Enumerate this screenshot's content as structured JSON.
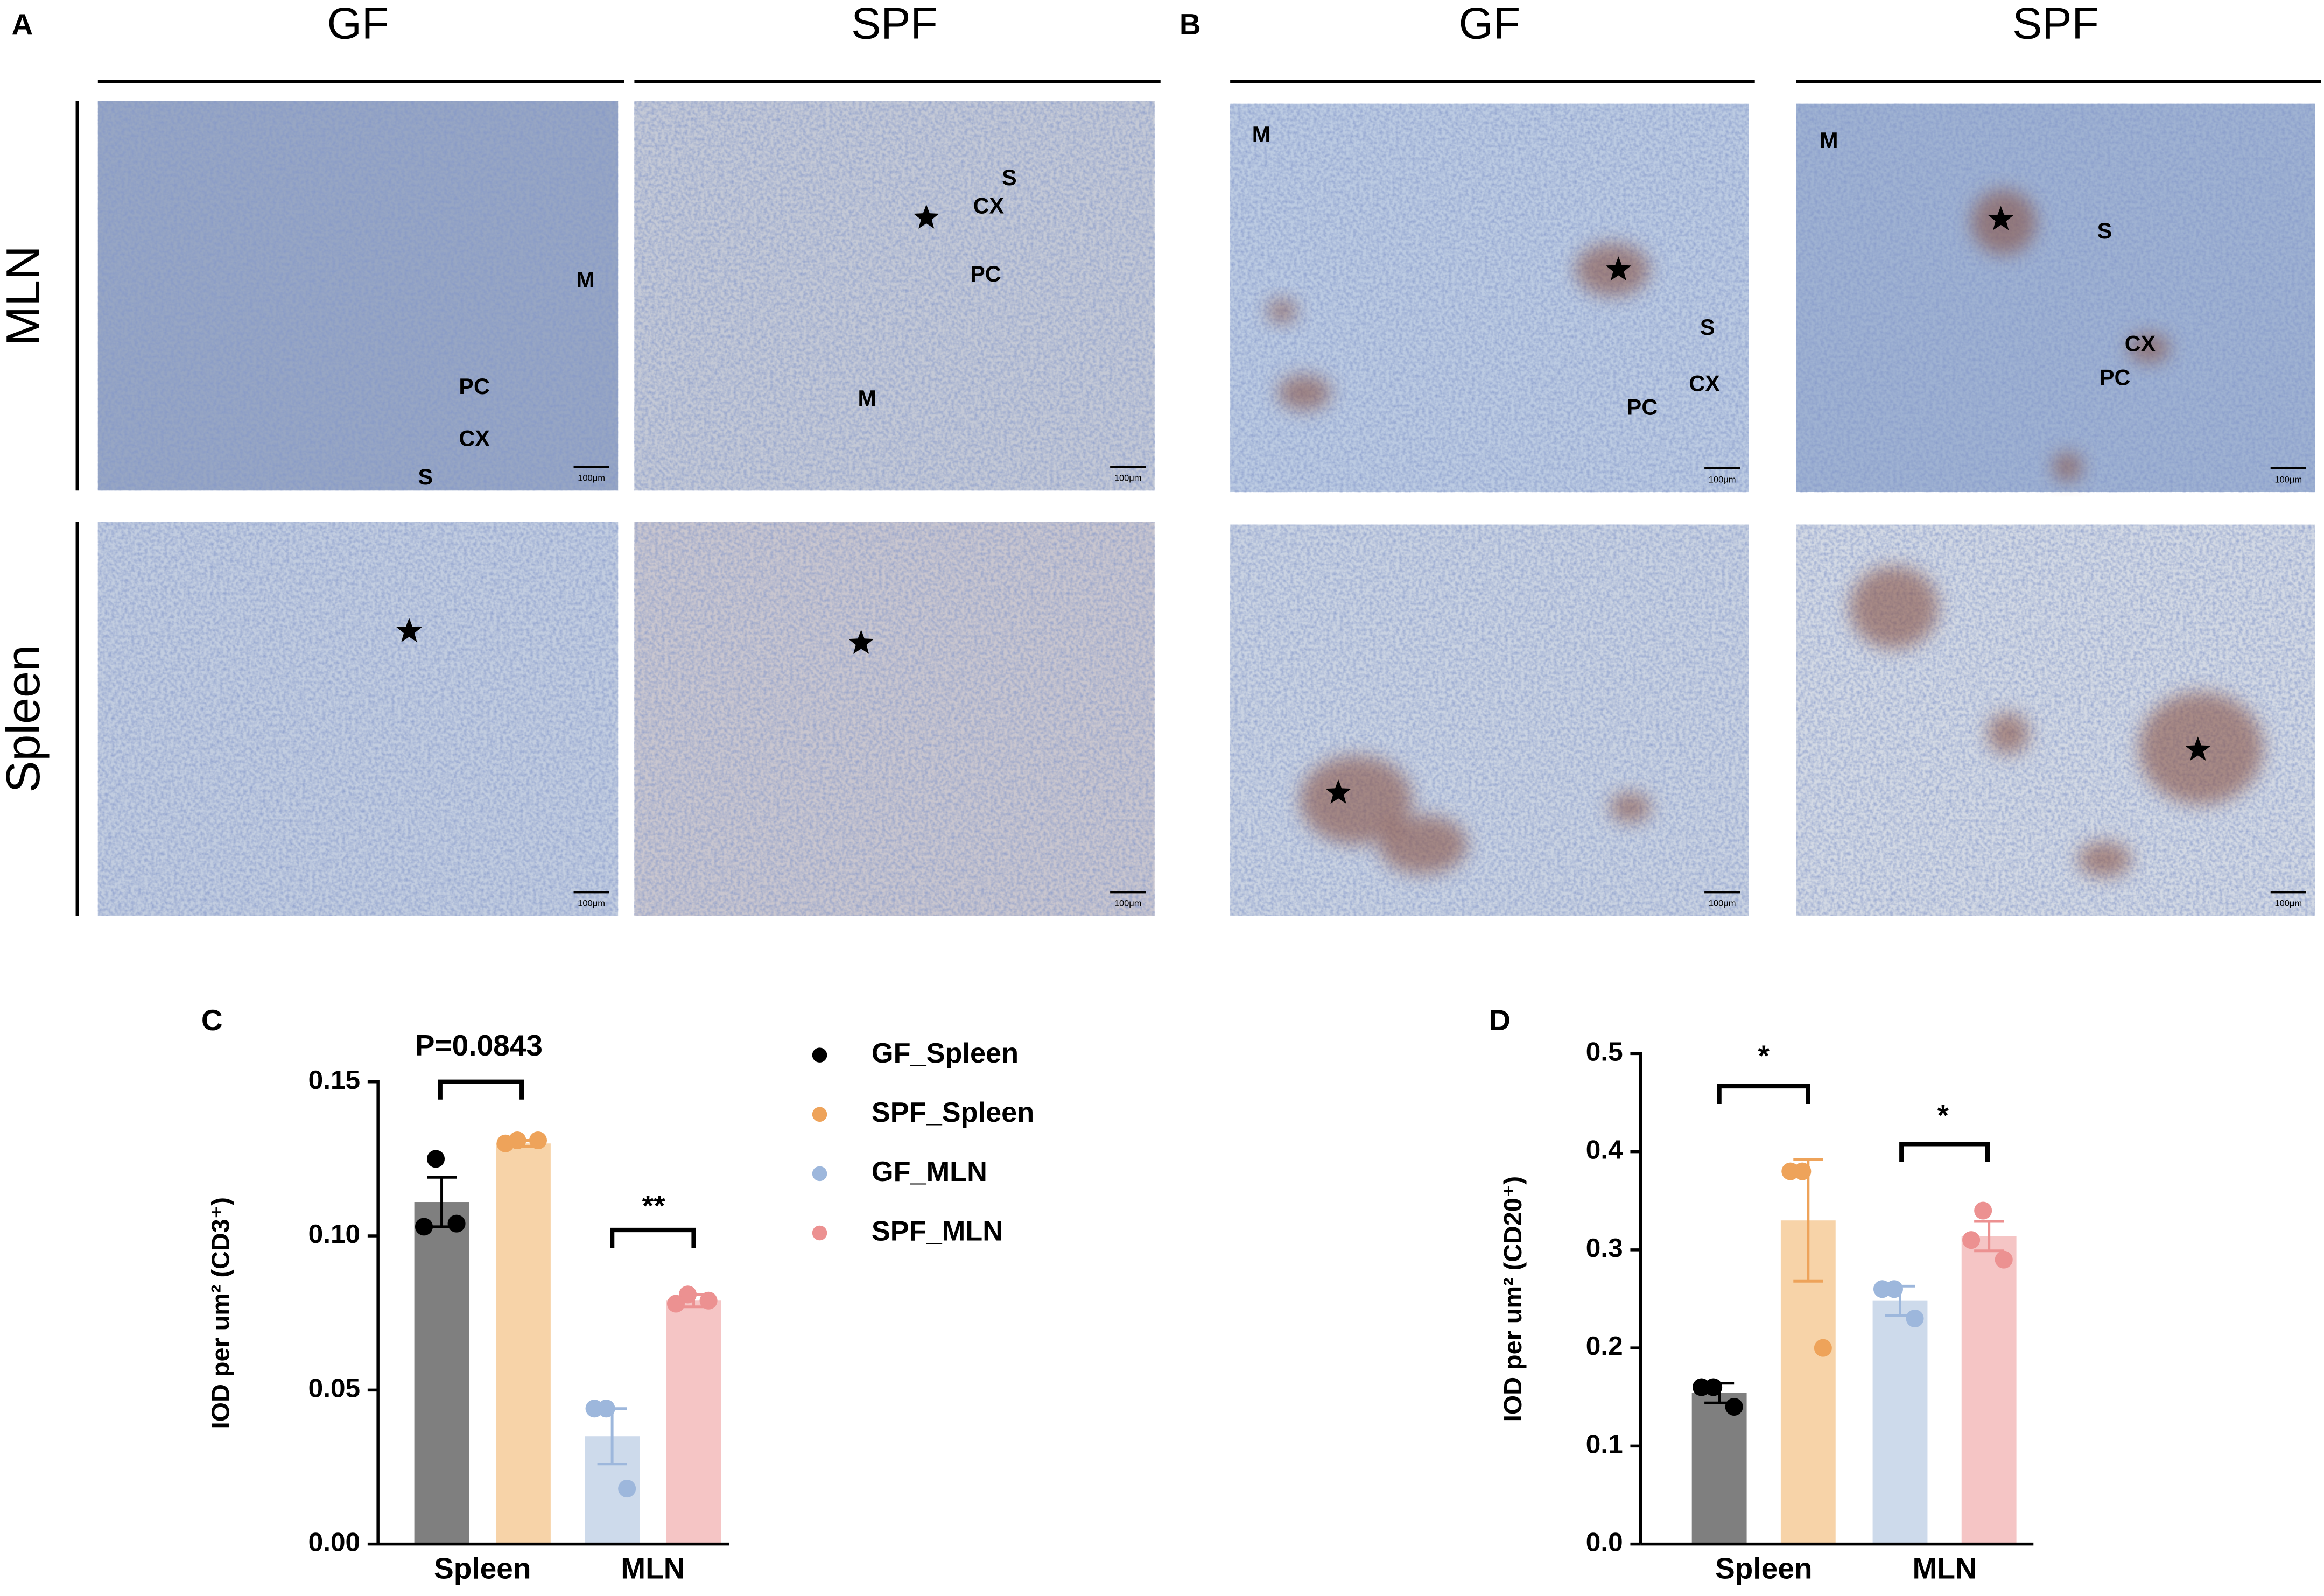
{
  "figure": {
    "panels": [
      {
        "label": "A",
        "columns": [
          "GF",
          "SPF"
        ],
        "rows": [
          "MLN",
          "Spleen"
        ],
        "images": [
          {
            "annotations": [
              "M",
              "PC",
              "CX",
              "S"
            ],
            "scale_bar": "100μm"
          },
          {
            "annotations": [
              "S",
              "CX",
              "PC",
              "M"
            ],
            "scale_bar": "100μm"
          },
          {
            "scale_bar": "100μm"
          },
          {
            "scale_bar": "100μm"
          }
        ]
      },
      {
        "label": "B",
        "columns": [
          "GF",
          "SPF"
        ],
        "images": [
          {
            "annotations": [
              "M",
              "S",
              "CX",
              "PC"
            ],
            "scale_bar": "100μm"
          },
          {
            "annotations": [
              "M",
              "S",
              "CX",
              "PC"
            ],
            "scale_bar": "100μm"
          },
          {
            "scale_bar": "100μm"
          },
          {
            "scale_bar": "100μm"
          }
        ]
      }
    ]
  },
  "chart_data": [
    {
      "type": "bar",
      "panel": "C",
      "ylabel": "IOD per um² (CD3⁺)",
      "categories": [
        "Spleen",
        "MLN"
      ],
      "ylim": [
        0,
        0.15
      ],
      "yticks": [
        {
          "value": 0,
          "label": "0.00"
        },
        {
          "value": 0.05,
          "label": "0.05"
        },
        {
          "value": 0.1,
          "label": "0.10"
        },
        {
          "value": 0.15,
          "label": "0.15"
        }
      ],
      "legend": true,
      "series": [
        {
          "name": "GF_Spleen",
          "color": "#000000",
          "fill": "#7f7f7f",
          "values": [
            0.111,
            null
          ],
          "errors": [
            0.008,
            null
          ],
          "points": [
            [
              0.125,
              0.103,
              0.104
            ],
            null
          ]
        },
        {
          "name": "SPF_Spleen",
          "color": "#eea35a",
          "fill": "#f7d3a8",
          "values": [
            0.13,
            null
          ],
          "errors": [
            0.001,
            null
          ],
          "points": [
            [
              0.131,
              0.13,
              0.131
            ],
            null
          ]
        },
        {
          "name": "GF_MLN",
          "color": "#9db7dc",
          "fill": "#cddaeb",
          "values": [
            null,
            0.035
          ],
          "errors": [
            null,
            0.009
          ],
          "points": [
            null,
            [
              0.044,
              0.044,
              0.018
            ]
          ]
        },
        {
          "name": "SPF_MLN",
          "color": "#ec9191",
          "fill": "#f5c5c5",
          "values": [
            null,
            0.079
          ],
          "errors": [
            null,
            0.002
          ],
          "points": [
            null,
            [
              0.081,
              0.078,
              0.079
            ]
          ]
        }
      ],
      "annotations": [
        "P=0.0843",
        "**"
      ]
    },
    {
      "type": "bar",
      "panel": "D",
      "ylabel": "IOD per um² (CD20⁺)",
      "categories": [
        "Spleen",
        "MLN"
      ],
      "ylim": [
        0,
        0.5
      ],
      "yticks": [
        {
          "value": 0,
          "label": "0.0"
        },
        {
          "value": 0.1,
          "label": "0.1"
        },
        {
          "value": 0.2,
          "label": "0.2"
        },
        {
          "value": 0.3,
          "label": "0.3"
        },
        {
          "value": 0.4,
          "label": "0.4"
        },
        {
          "value": 0.5,
          "label": "0.5"
        }
      ],
      "legend": false,
      "series": [
        {
          "color": "#000000",
          "fill": "#7f7f7f",
          "values": [
            0.154,
            null
          ],
          "errors": [
            0.01,
            null
          ],
          "points": [
            [
              0.16,
              0.16,
              0.14
            ],
            null
          ]
        },
        {
          "color": "#eea35a",
          "fill": "#f7d3a8",
          "values": [
            0.33,
            null
          ],
          "errors": [
            0.062,
            null
          ],
          "points": [
            [
              0.38,
              0.38,
              0.2
            ],
            null
          ]
        },
        {
          "color": "#9db7dc",
          "fill": "#cddaeb",
          "values": [
            null,
            0.248
          ],
          "errors": [
            null,
            0.015
          ],
          "points": [
            null,
            [
              0.26,
              0.26,
              0.23
            ]
          ]
        },
        {
          "color": "#ec9191",
          "fill": "#f5c5c5",
          "values": [
            null,
            0.314
          ],
          "errors": [
            null,
            0.015
          ],
          "points": [
            null,
            [
              0.34,
              0.31,
              0.29
            ]
          ]
        }
      ],
      "annotations": [
        "*",
        "*"
      ]
    }
  ]
}
